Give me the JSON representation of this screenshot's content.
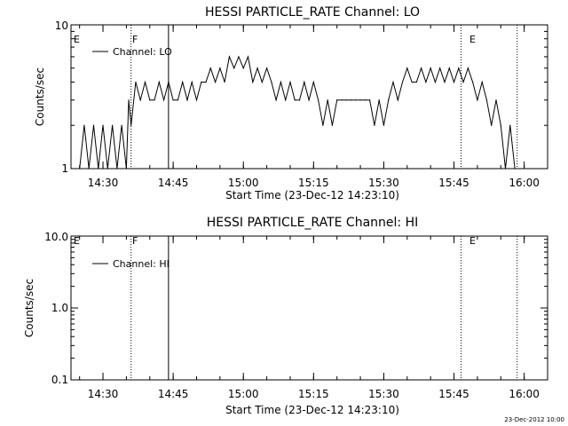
{
  "chart_data": [
    {
      "type": "line",
      "title": "HESSI PARTICLE_RATE Channel: LO",
      "ylabel": "Counts/sec",
      "xlabel": "Start Time (23-Dec-12 14:23:10)",
      "y_scale": "log",
      "ylim": [
        1,
        10
      ],
      "y_tick_labels": [
        "1",
        "10"
      ],
      "x_ticks": [
        "14:30",
        "14:45",
        "15:00",
        "15:15",
        "15:30",
        "15:45",
        "16:00"
      ],
      "legend": "top-left",
      "series": [
        {
          "name": "Channel: LO",
          "x": [
            "14:25:00",
            "14:26:00",
            "14:27:00",
            "14:28:00",
            "14:29:00",
            "14:30:00",
            "14:31:00",
            "14:32:00",
            "14:33:00",
            "14:34:00",
            "14:35:00",
            "14:35:30",
            "14:36:00",
            "14:37:00",
            "14:38:00",
            "14:39:00",
            "14:40:00",
            "14:41:00",
            "14:42:00",
            "14:43:00",
            "14:44:00",
            "14:45:00",
            "14:46:00",
            "14:47:00",
            "14:48:00",
            "14:49:00",
            "14:50:00",
            "14:51:00",
            "14:52:00",
            "14:53:00",
            "14:54:00",
            "14:55:00",
            "14:56:00",
            "14:57:00",
            "14:58:00",
            "14:59:00",
            "15:00:00",
            "15:01:00",
            "15:02:00",
            "15:03:00",
            "15:04:00",
            "15:05:00",
            "15:06:00",
            "15:07:00",
            "15:08:00",
            "15:09:00",
            "15:10:00",
            "15:11:00",
            "15:12:00",
            "15:13:00",
            "15:14:00",
            "15:15:00",
            "15:16:00",
            "15:17:00",
            "15:18:00",
            "15:19:00",
            "15:20:00",
            "15:21:00",
            "15:22:00",
            "15:23:00",
            "15:24:00",
            "15:25:00",
            "15:26:00",
            "15:27:00",
            "15:28:00",
            "15:29:00",
            "15:30:00",
            "15:31:00",
            "15:32:00",
            "15:33:00",
            "15:34:00",
            "15:35:00",
            "15:36:00",
            "15:37:00",
            "15:38:00",
            "15:39:00",
            "15:40:00",
            "15:41:00",
            "15:42:00",
            "15:43:00",
            "15:44:00",
            "15:45:00",
            "15:46:00",
            "15:47:00",
            "15:48:00",
            "15:49:00",
            "15:50:00",
            "15:51:00",
            "15:52:00",
            "15:53:00",
            "15:54:00",
            "15:55:00",
            "15:56:00",
            "15:57:00",
            "15:58:00"
          ],
          "values": [
            1,
            2,
            1,
            2,
            1,
            2,
            1,
            2,
            1,
            2,
            1,
            3,
            2,
            4,
            3,
            4,
            3,
            3,
            4,
            3,
            4,
            3,
            3,
            4,
            3,
            4,
            3,
            4,
            4,
            5,
            4,
            5,
            4,
            6,
            5,
            6,
            5,
            6,
            4,
            5,
            4,
            5,
            4,
            3,
            4,
            3,
            4,
            3,
            3,
            4,
            3,
            4,
            3,
            2,
            3,
            2,
            3,
            3,
            3,
            3,
            3,
            3,
            3,
            3,
            2,
            3,
            2,
            3,
            4,
            3,
            4,
            5,
            4,
            4,
            5,
            4,
            5,
            4,
            5,
            4,
            5,
            4,
            5,
            4,
            5,
            4,
            3,
            4,
            3,
            2,
            3,
            2,
            1,
            2,
            1
          ]
        }
      ],
      "vlines": [
        {
          "x": "14:36:00",
          "style": "dotted",
          "label": "F"
        },
        {
          "x": "14:44:00",
          "style": "solid"
        },
        {
          "x": "15:46:30",
          "style": "dotted",
          "label": "E"
        },
        {
          "x": "15:58:30",
          "style": "dotted"
        }
      ],
      "edge_label": "E"
    },
    {
      "type": "line",
      "title": "HESSI PARTICLE_RATE Channel: HI",
      "ylabel": "Counts/sec",
      "xlabel": "Start Time (23-Dec-12 14:23:10)",
      "y_scale": "log",
      "ylim": [
        0.1,
        10
      ],
      "y_tick_labels": [
        "0.1",
        "1.0",
        "10.0"
      ],
      "x_ticks": [
        "14:30",
        "14:45",
        "15:00",
        "15:15",
        "15:30",
        "15:45",
        "16:00"
      ],
      "legend": "top-left",
      "series": [
        {
          "name": "Channel: HI",
          "x": [],
          "values": []
        }
      ],
      "vlines": [
        {
          "x": "14:36:00",
          "style": "dotted",
          "label": "F"
        },
        {
          "x": "14:44:00",
          "style": "solid"
        },
        {
          "x": "15:46:30",
          "style": "dotted",
          "label": "E"
        },
        {
          "x": "15:58:30",
          "style": "dotted"
        }
      ],
      "edge_label": "E"
    }
  ],
  "footer": {
    "date_stamp": "23-Dec-2012 10:00"
  }
}
